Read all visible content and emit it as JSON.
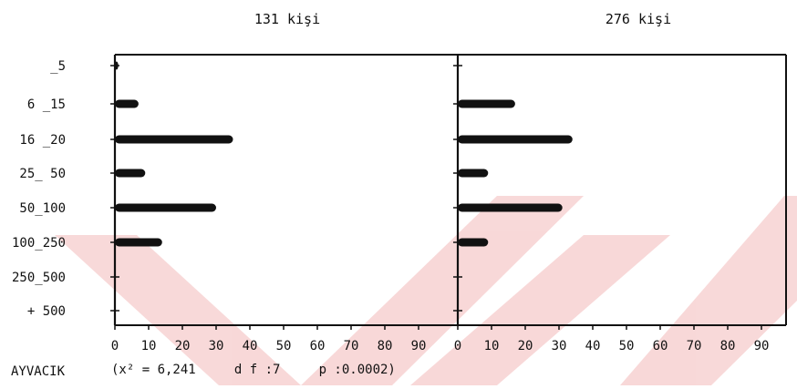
{
  "chart_data": [
    {
      "type": "bar",
      "orientation": "horizontal",
      "title": "131 kişi",
      "categories": [
        "_5",
        "6 _15",
        "16 _20",
        "25_ 50",
        "50_100",
        "100_250",
        "250_500",
        "+ 500"
      ],
      "values": [
        1,
        7,
        35,
        9,
        30,
        14,
        0,
        0
      ],
      "xlim": [
        0,
        100
      ],
      "x_ticks": [
        "0",
        "10",
        "20",
        "30",
        "40",
        "50",
        "60",
        "70",
        "80",
        "90"
      ],
      "color": "#111111"
    },
    {
      "type": "bar",
      "orientation": "horizontal",
      "title": "276 kişi",
      "categories": [
        "_5",
        "6 _15",
        "16 _20",
        "25_ 50",
        "50_100",
        "100_250",
        "250_500",
        "+ 500"
      ],
      "values": [
        0,
        17,
        34,
        9,
        31,
        9,
        0,
        0
      ],
      "xlim": [
        0,
        100
      ],
      "x_ticks": [
        "0",
        "10",
        "20",
        "30",
        "40",
        "50",
        "60",
        "70",
        "80",
        "90"
      ],
      "color": "#111111"
    }
  ],
  "footer": {
    "location": "AYVACIK",
    "stats": "(x² = 6,241     d f :7     p :0.0002)"
  },
  "watermark_color": "#f7d2d2"
}
